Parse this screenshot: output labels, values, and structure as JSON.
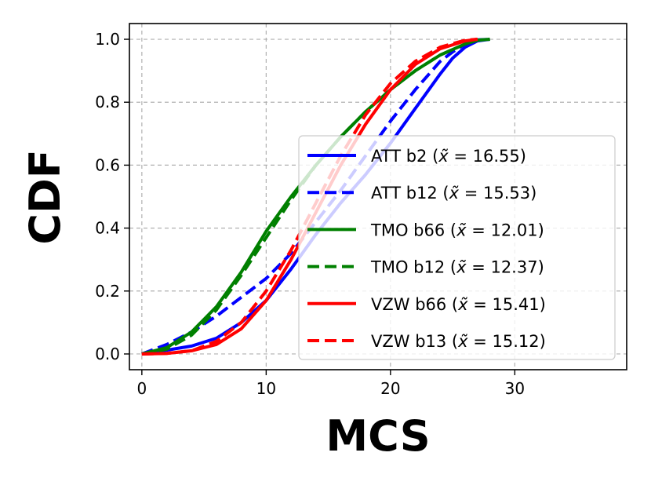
{
  "chart_data": {
    "type": "line",
    "title": "",
    "xlabel": "MCS",
    "ylabel": "CDF",
    "xlim": [
      -1,
      39
    ],
    "ylim": [
      -0.05,
      1.05
    ],
    "xticks": [
      0,
      10,
      20,
      30
    ],
    "yticks": [
      0.0,
      0.2,
      0.4,
      0.6,
      0.8,
      1.0
    ],
    "xtick_labels": [
      "0",
      "10",
      "20",
      "30"
    ],
    "ytick_labels": [
      "0.0",
      "0.2",
      "0.4",
      "0.6",
      "0.8",
      "1.0"
    ],
    "grid": true,
    "legend_position": "center-right",
    "series": [
      {
        "name": "ATT b2",
        "median": "16.55",
        "color": "#0000ff",
        "dash": "solid",
        "x": [
          0,
          2,
          4,
          6,
          8,
          10,
          12,
          14,
          16,
          18,
          20,
          22,
          24,
          25,
          26,
          27,
          28
        ],
        "y": [
          0,
          0.012,
          0.025,
          0.05,
          0.1,
          0.17,
          0.27,
          0.38,
          0.48,
          0.57,
          0.67,
          0.78,
          0.89,
          0.94,
          0.975,
          0.995,
          1.0
        ]
      },
      {
        "name": "ATT b12",
        "median": "15.53",
        "color": "#0000ff",
        "dash": "dashed",
        "x": [
          0,
          2,
          4,
          6,
          8,
          10,
          12,
          14,
          16,
          18,
          20,
          22,
          24,
          25,
          26,
          27,
          28
        ],
        "y": [
          0,
          0.03,
          0.07,
          0.12,
          0.18,
          0.24,
          0.32,
          0.42,
          0.52,
          0.63,
          0.74,
          0.84,
          0.93,
          0.96,
          0.985,
          0.998,
          1.0
        ]
      },
      {
        "name": "TMO b66",
        "median": "12.01",
        "color": "#008000",
        "dash": "solid",
        "x": [
          0,
          2,
          4,
          6,
          8,
          10,
          12,
          14,
          16,
          18,
          20,
          22,
          24,
          26,
          27,
          28
        ],
        "y": [
          0,
          0.02,
          0.07,
          0.15,
          0.26,
          0.39,
          0.5,
          0.6,
          0.69,
          0.77,
          0.84,
          0.9,
          0.95,
          0.985,
          0.997,
          1.0
        ]
      },
      {
        "name": "TMO b12",
        "median": "12.37",
        "color": "#008000",
        "dash": "dashed",
        "x": [
          0,
          2,
          4,
          6,
          8,
          10,
          12,
          14,
          16,
          18,
          20,
          22,
          24,
          26,
          27,
          28
        ],
        "y": [
          0,
          0.015,
          0.06,
          0.14,
          0.25,
          0.37,
          0.49,
          0.6,
          0.69,
          0.77,
          0.84,
          0.9,
          0.95,
          0.985,
          0.997,
          1.0
        ]
      },
      {
        "name": "VZW b66",
        "median": "15.41",
        "color": "#ff0000",
        "dash": "solid",
        "x": [
          0,
          2,
          4,
          6,
          8,
          10,
          12,
          14,
          16,
          18,
          20,
          22,
          24,
          26,
          27
        ],
        "y": [
          0,
          0.002,
          0.01,
          0.03,
          0.08,
          0.17,
          0.3,
          0.45,
          0.6,
          0.73,
          0.84,
          0.92,
          0.97,
          0.995,
          1.0
        ]
      },
      {
        "name": "VZW b13",
        "median": "15.12",
        "color": "#ff0000",
        "dash": "dashed",
        "x": [
          0,
          2,
          4,
          6,
          8,
          10,
          12,
          14,
          16,
          18,
          20,
          22,
          24,
          26,
          27
        ],
        "y": [
          0,
          0.002,
          0.01,
          0.04,
          0.1,
          0.2,
          0.33,
          0.48,
          0.63,
          0.76,
          0.86,
          0.93,
          0.975,
          0.997,
          1.0
        ]
      }
    ]
  }
}
